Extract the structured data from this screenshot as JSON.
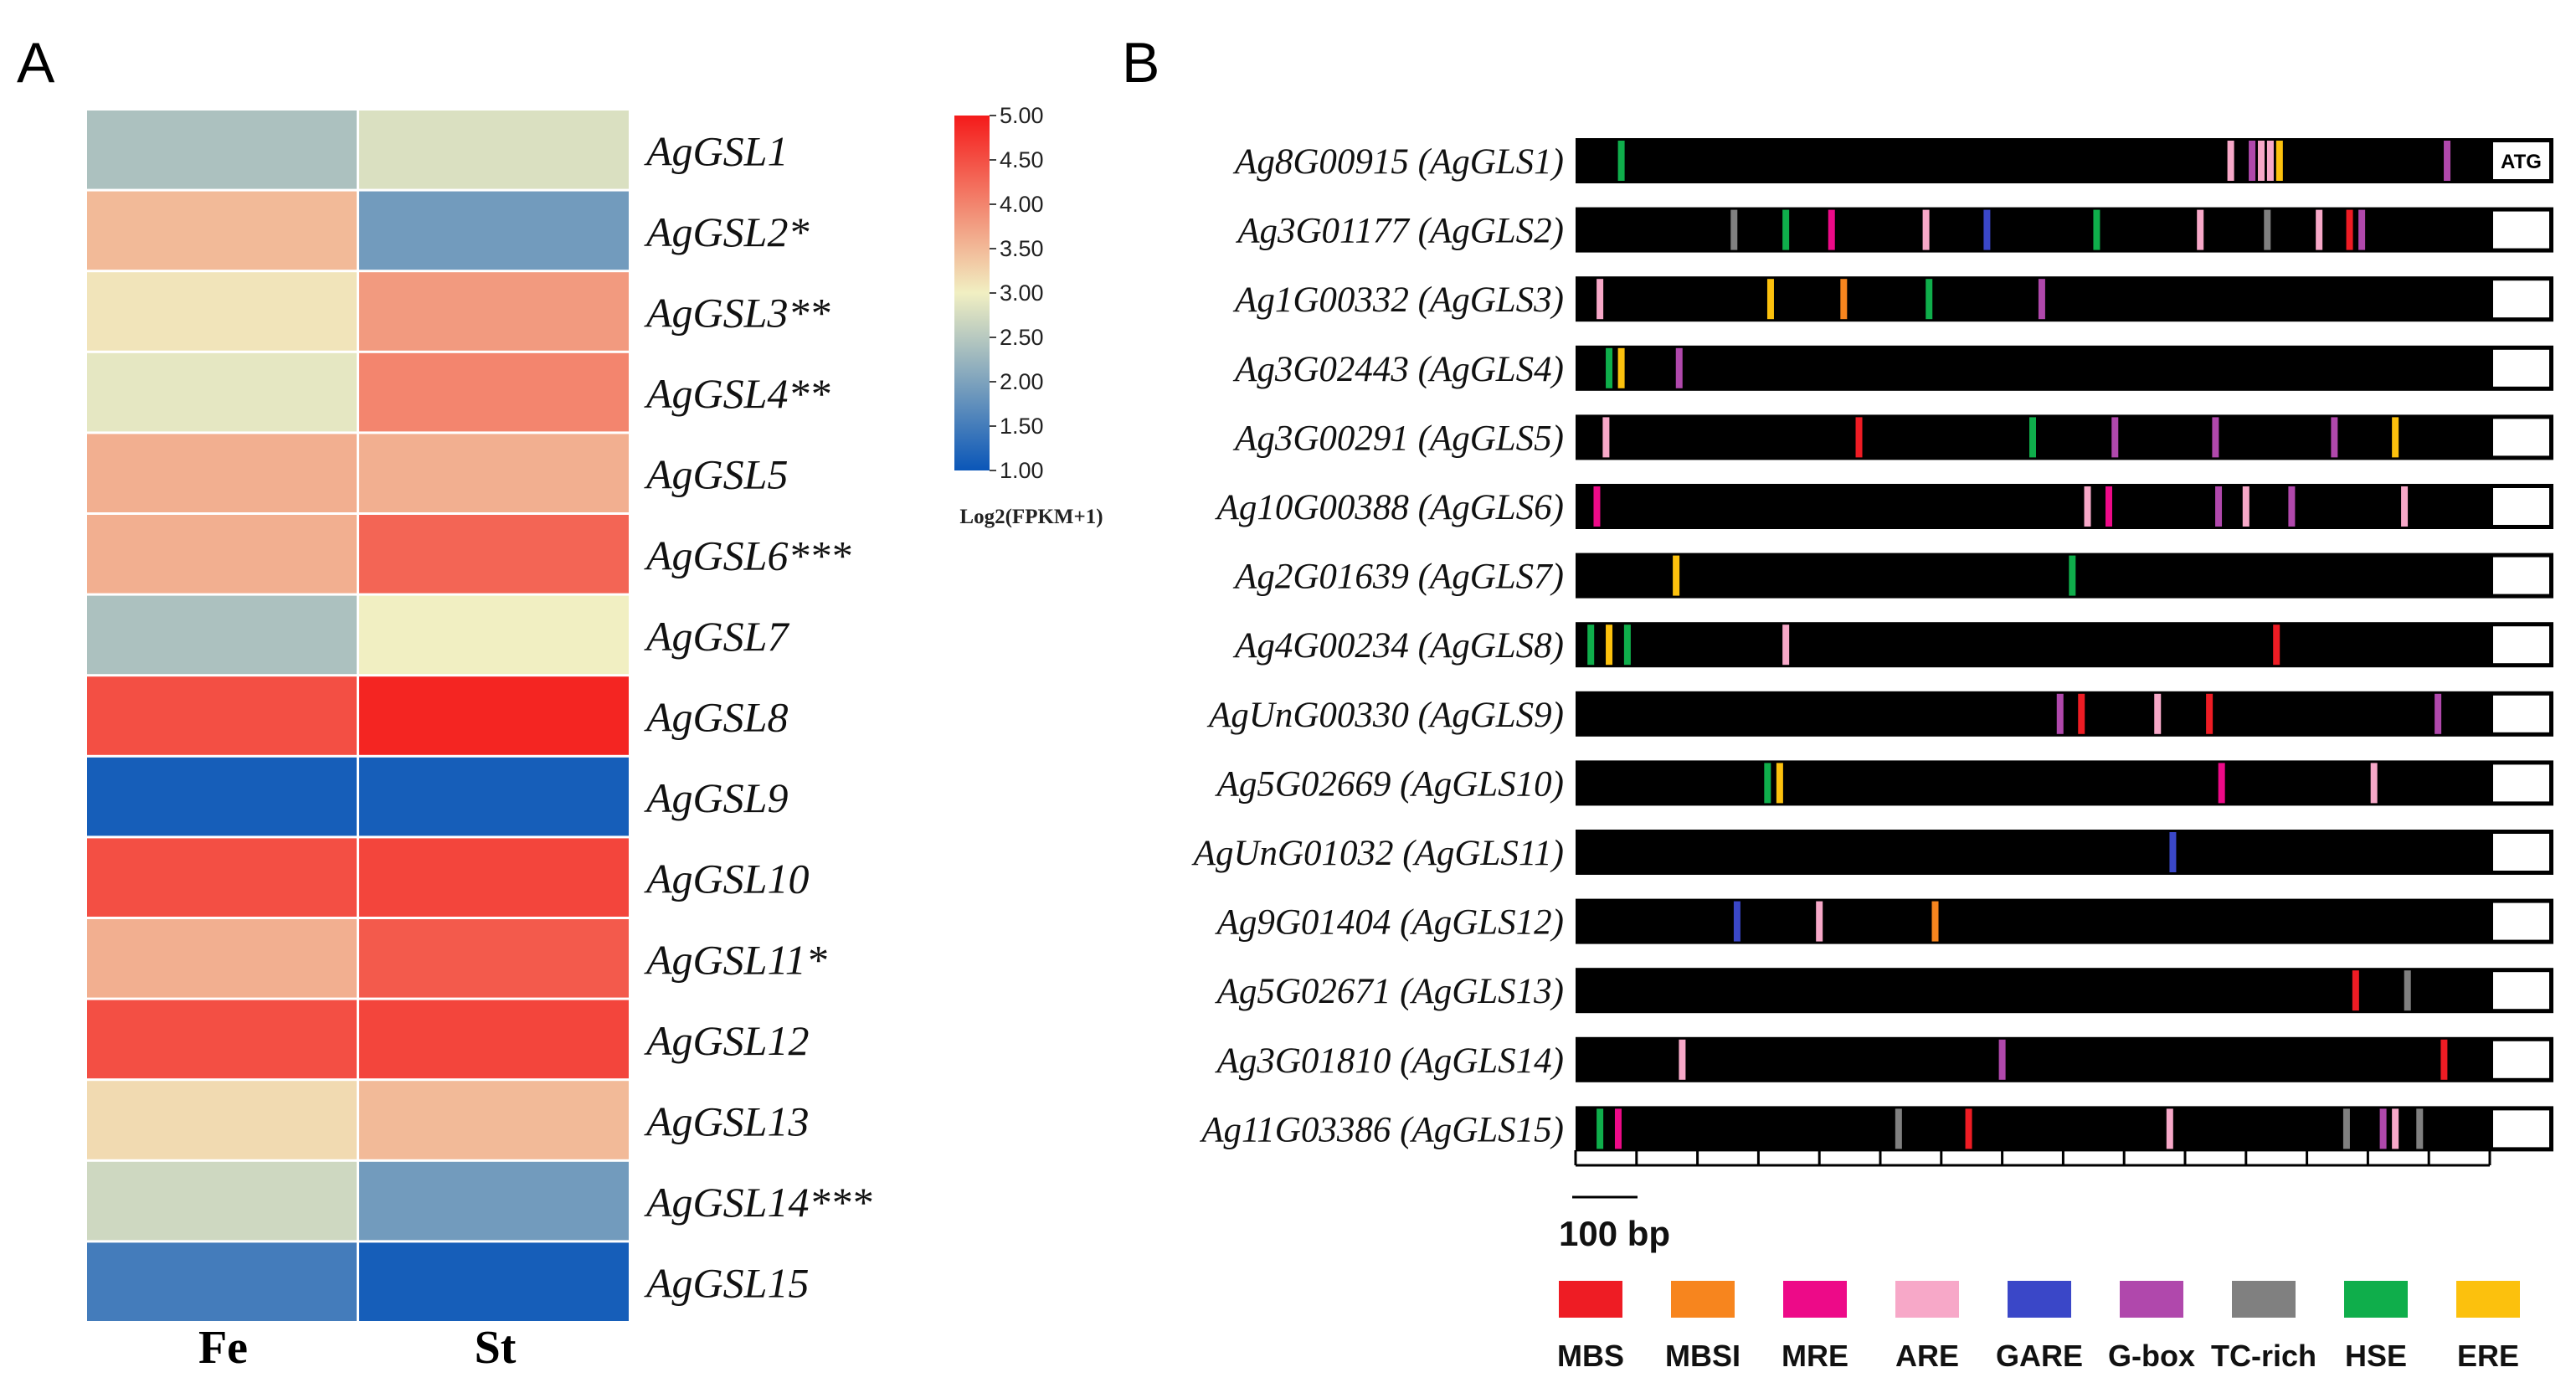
{
  "panels": {
    "a": "A",
    "b": "B"
  },
  "chart_data": [
    {
      "type": "heatmap",
      "columns": [
        "Fe",
        "St"
      ],
      "rows": [
        "AgGSL1",
        "AgGSL2*",
        "AgGSL3**",
        "AgGSL4**",
        "AgGSL5",
        "AgGSL6***",
        "AgGSL7",
        "AgGSL8",
        "AgGSL9",
        "AgGSL10",
        "AgGSL11*",
        "AgGSL12",
        "AgGSL13",
        "AgGSL14***",
        "AgGSL15"
      ],
      "values": [
        [
          2.4,
          2.8
        ],
        [
          3.5,
          1.9
        ],
        [
          3.1,
          3.8
        ],
        [
          2.9,
          4.0
        ],
        [
          3.6,
          3.6
        ],
        [
          3.6,
          4.3
        ],
        [
          2.4,
          3.0
        ],
        [
          4.5,
          4.9
        ],
        [
          1.1,
          1.1
        ],
        [
          4.5,
          4.6
        ],
        [
          3.6,
          4.4
        ],
        [
          4.5,
          4.6
        ],
        [
          3.2,
          3.5
        ],
        [
          2.7,
          1.9
        ],
        [
          1.5,
          1.1
        ]
      ],
      "colorbar": {
        "min": 1.0,
        "max": 5.0,
        "ticks": [
          "5.00",
          "4.50",
          "4.00",
          "3.50",
          "3.00",
          "2.50",
          "2.00",
          "1.50",
          "1.00"
        ],
        "title": "Log2(FPKM+1)",
        "colors": [
          "#0a56b8",
          "#f1efc2",
          "#f41a1a"
        ]
      }
    },
    {
      "type": "promoter-elements",
      "scale_label": "100 bp",
      "start_label": "ATG",
      "bp_per_tick": 100,
      "promoter_length_bp": 1500,
      "sequences": [
        {
          "id": "Ag8G00915 (AgGLS1)",
          "elements": [
            {
              "t": "HSE",
              "bp": 75
            },
            {
              "t": "ARE",
              "bp": 1075
            },
            {
              "t": "G-box",
              "bp": 1110
            },
            {
              "t": "ARE",
              "bp": 1125
            },
            {
              "t": "ARE",
              "bp": 1140
            },
            {
              "t": "ERE",
              "bp": 1155
            },
            {
              "t": "G-box",
              "bp": 1430
            }
          ]
        },
        {
          "id": "Ag3G01177 (AgGLS2)",
          "elements": [
            {
              "t": "TC-rich",
              "bp": 260
            },
            {
              "t": "HSE",
              "bp": 345
            },
            {
              "t": "MRE",
              "bp": 420
            },
            {
              "t": "ARE",
              "bp": 575
            },
            {
              "t": "GARE",
              "bp": 675
            },
            {
              "t": "HSE",
              "bp": 855
            },
            {
              "t": "ARE",
              "bp": 1025
            },
            {
              "t": "TC-rich",
              "bp": 1135
            },
            {
              "t": "ARE",
              "bp": 1220
            },
            {
              "t": "MBS",
              "bp": 1270
            },
            {
              "t": "G-box",
              "bp": 1290
            }
          ]
        },
        {
          "id": "Ag1G00332 (AgGLS3)",
          "elements": [
            {
              "t": "ARE",
              "bp": 40
            },
            {
              "t": "ERE",
              "bp": 320
            },
            {
              "t": "MBSI",
              "bp": 440
            },
            {
              "t": "HSE",
              "bp": 580
            },
            {
              "t": "G-box",
              "bp": 765
            }
          ]
        },
        {
          "id": "Ag3G02443 (AgGLS4)",
          "elements": [
            {
              "t": "HSE",
              "bp": 55
            },
            {
              "t": "ERE",
              "bp": 75
            },
            {
              "t": "G-box",
              "bp": 170
            }
          ]
        },
        {
          "id": "Ag3G00291 (AgGLS5)",
          "elements": [
            {
              "t": "ARE",
              "bp": 50
            },
            {
              "t": "MBS",
              "bp": 465
            },
            {
              "t": "HSE",
              "bp": 750
            },
            {
              "t": "G-box",
              "bp": 885
            },
            {
              "t": "G-box",
              "bp": 1050
            },
            {
              "t": "G-box",
              "bp": 1245
            },
            {
              "t": "ERE",
              "bp": 1345
            }
          ]
        },
        {
          "id": "Ag10G00388 (AgGLS6)",
          "elements": [
            {
              "t": "MRE",
              "bp": 35
            },
            {
              "t": "ARE",
              "bp": 840
            },
            {
              "t": "MRE",
              "bp": 875
            },
            {
              "t": "G-box",
              "bp": 1055
            },
            {
              "t": "ARE",
              "bp": 1100
            },
            {
              "t": "G-box",
              "bp": 1175
            },
            {
              "t": "ARE",
              "bp": 1360
            }
          ]
        },
        {
          "id": "Ag2G01639 (AgGLS7)",
          "elements": [
            {
              "t": "ERE",
              "bp": 165
            },
            {
              "t": "HSE",
              "bp": 815
            }
          ]
        },
        {
          "id": "Ag4G00234 (AgGLS8)",
          "elements": [
            {
              "t": "HSE",
              "bp": 25
            },
            {
              "t": "ERE",
              "bp": 55
            },
            {
              "t": "HSE",
              "bp": 85
            },
            {
              "t": "ARE",
              "bp": 345
            },
            {
              "t": "MBS",
              "bp": 1150
            }
          ]
        },
        {
          "id": "AgUnG00330 (AgGLS9)",
          "elements": [
            {
              "t": "G-box",
              "bp": 795
            },
            {
              "t": "MBS",
              "bp": 830
            },
            {
              "t": "ARE",
              "bp": 955
            },
            {
              "t": "MBS",
              "bp": 1040
            },
            {
              "t": "G-box",
              "bp": 1415
            }
          ]
        },
        {
          "id": "Ag5G02669 (AgGLS10)",
          "elements": [
            {
              "t": "HSE",
              "bp": 315
            },
            {
              "t": "ERE",
              "bp": 335
            },
            {
              "t": "MRE",
              "bp": 1060
            },
            {
              "t": "ARE",
              "bp": 1310
            }
          ]
        },
        {
          "id": "AgUnG01032 (AgGLS11)",
          "elements": [
            {
              "t": "GARE",
              "bp": 980
            }
          ]
        },
        {
          "id": "Ag9G01404 (AgGLS12)",
          "elements": [
            {
              "t": "GARE",
              "bp": 265
            },
            {
              "t": "ARE",
              "bp": 400
            },
            {
              "t": "MBSI",
              "bp": 590
            }
          ]
        },
        {
          "id": "Ag5G02671 (AgGLS13)",
          "elements": [
            {
              "t": "MBS",
              "bp": 1280
            },
            {
              "t": "TC-rich",
              "bp": 1365
            }
          ]
        },
        {
          "id": "Ag3G01810 (AgGLS14)",
          "elements": [
            {
              "t": "ARE",
              "bp": 175
            },
            {
              "t": "G-box",
              "bp": 700
            },
            {
              "t": "MBS",
              "bp": 1425
            }
          ]
        },
        {
          "id": "Ag11G03386 (AgGLS15)",
          "elements": [
            {
              "t": "HSE",
              "bp": 40
            },
            {
              "t": "MRE",
              "bp": 70
            },
            {
              "t": "TC-rich",
              "bp": 530
            },
            {
              "t": "MBS",
              "bp": 645
            },
            {
              "t": "ARE",
              "bp": 975
            },
            {
              "t": "TC-rich",
              "bp": 1265
            },
            {
              "t": "G-box",
              "bp": 1325
            },
            {
              "t": "ARE",
              "bp": 1345
            },
            {
              "t": "TC-rich",
              "bp": 1385
            }
          ]
        }
      ],
      "legend": [
        {
          "label": "MBS",
          "color": "#ee1c24"
        },
        {
          "label": "MBSI",
          "color": "#f7851e"
        },
        {
          "label": "MRE",
          "color": "#ed0a88"
        },
        {
          "label": "ARE",
          "color": "#f7a8c8"
        },
        {
          "label": "GARE",
          "color": "#3a47c8"
        },
        {
          "label": "G-box",
          "color": "#b048ac"
        },
        {
          "label": "TC-rich",
          "color": "#808080"
        },
        {
          "label": "HSE",
          "color": "#0fae4b"
        },
        {
          "label": "ERE",
          "color": "#fcc10d"
        }
      ]
    }
  ]
}
